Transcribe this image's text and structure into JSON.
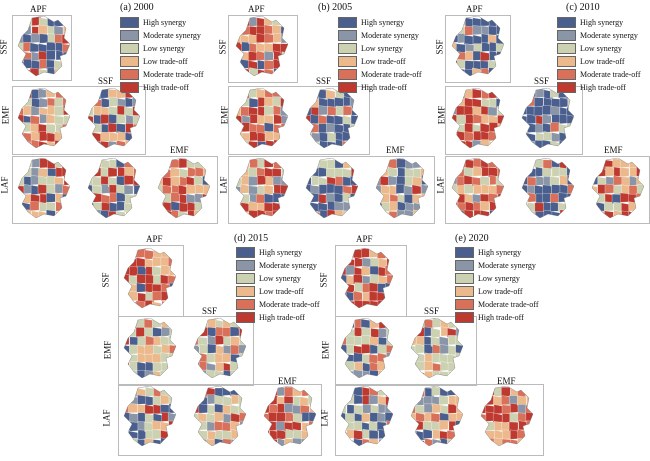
{
  "legend": [
    {
      "label": "High synergy",
      "color": "#4a5f8e"
    },
    {
      "label": "Moderate synergy",
      "color": "#8a96a8"
    },
    {
      "label": "Low synergy",
      "color": "#ccd1b1"
    },
    {
      "label": "Low trade-off",
      "color": "#ecb98d"
    },
    {
      "label": "Moderate trade-off",
      "color": "#d8705a"
    },
    {
      "label": "High trade-off",
      "color": "#be3a30"
    }
  ],
  "axes": {
    "apf": "APF",
    "ssf": "SSF",
    "emf": "EMF",
    "laf": "LAF"
  },
  "panels": [
    {
      "title": "(a) 2000"
    },
    {
      "title": "(b) 2005"
    },
    {
      "title": "(c) 2010"
    },
    {
      "title": "(d) 2015"
    },
    {
      "title": "(e) 2020"
    }
  ]
}
